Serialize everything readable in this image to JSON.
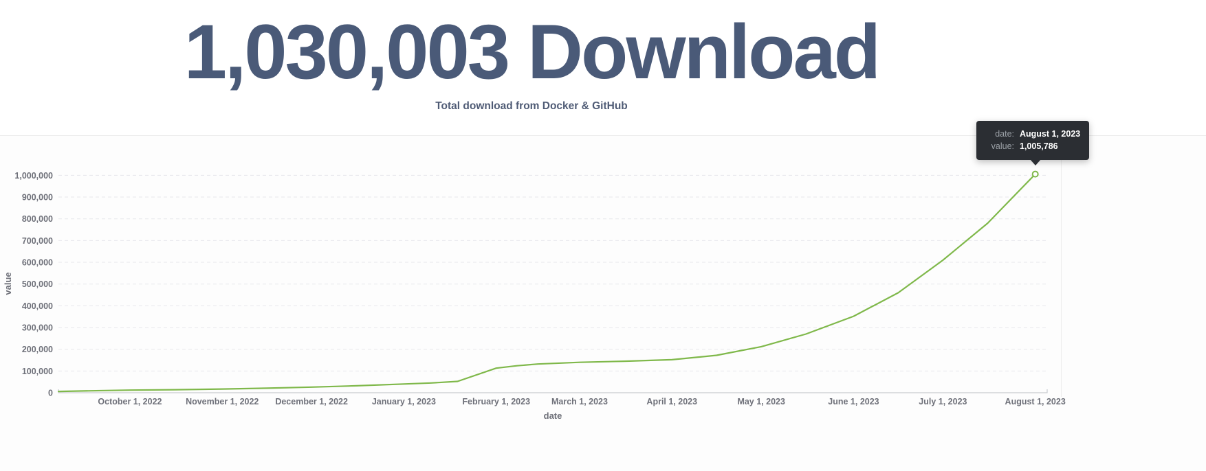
{
  "header": {
    "title": "1,030,003 Download",
    "subtitle": "Total download from Docker & GitHub"
  },
  "tooltip": {
    "rows": [
      {
        "label": "date:",
        "value": "August 1, 2023"
      },
      {
        "label": "value:",
        "value": "1,005,786"
      }
    ]
  },
  "colors": {
    "title": "#4a5a78",
    "subtitle": "#4f5b75",
    "line": "#7fb84a",
    "tooltip_bg": "#2b2e33",
    "tooltip_label": "#9ba0a6",
    "axis_text": "#6e7079",
    "grid_line": "#e7e8ec",
    "axis_line": "#c8cbd0"
  },
  "chart_data": {
    "type": "line",
    "title": "",
    "xlabel": "date",
    "ylabel": "value",
    "grid": "horizontal dashed gridlines",
    "legend": "none",
    "x_range": [
      "2022-09-07",
      "2023-08-05"
    ],
    "ylim": [
      0,
      1000000
    ],
    "y_ticks": [
      {
        "value": 0,
        "label": "0"
      },
      {
        "value": 100000,
        "label": "100,000"
      },
      {
        "value": 200000,
        "label": "200,000"
      },
      {
        "value": 300000,
        "label": "300,000"
      },
      {
        "value": 400000,
        "label": "400,000"
      },
      {
        "value": 500000,
        "label": "500,000"
      },
      {
        "value": 600000,
        "label": "600,000"
      },
      {
        "value": 700000,
        "label": "700,000"
      },
      {
        "value": 800000,
        "label": "800,000"
      },
      {
        "value": 900000,
        "label": "900,000"
      },
      {
        "value": 1000000,
        "label": "1,000,000"
      }
    ],
    "x_ticks": [
      {
        "date": "2022-10-01",
        "label": "October 1, 2022"
      },
      {
        "date": "2022-11-01",
        "label": "November 1, 2022"
      },
      {
        "date": "2022-12-01",
        "label": "December 1, 2022"
      },
      {
        "date": "2023-01-01",
        "label": "January 1, 2023"
      },
      {
        "date": "2023-02-01",
        "label": "February 1, 2023"
      },
      {
        "date": "2023-03-01",
        "label": "March 1, 2023"
      },
      {
        "date": "2023-04-01",
        "label": "April 1, 2023"
      },
      {
        "date": "2023-05-01",
        "label": "May 1, 2023"
      },
      {
        "date": "2023-06-01",
        "label": "June 1, 2023"
      },
      {
        "date": "2023-07-01",
        "label": "July 1, 2023"
      },
      {
        "date": "2023-08-01",
        "label": "August 1, 2023"
      }
    ],
    "series": [
      {
        "name": "value",
        "points": [
          [
            "2022-09-07",
            6000
          ],
          [
            "2022-09-18",
            9000
          ],
          [
            "2022-10-01",
            12000
          ],
          [
            "2022-10-16",
            14000
          ],
          [
            "2022-11-01",
            17000
          ],
          [
            "2022-11-16",
            21000
          ],
          [
            "2022-12-01",
            26000
          ],
          [
            "2022-12-16",
            32000
          ],
          [
            "2023-01-01",
            40000
          ],
          [
            "2023-01-10",
            45000
          ],
          [
            "2023-01-19",
            52000
          ],
          [
            "2023-02-01",
            113000
          ],
          [
            "2023-02-08",
            124000
          ],
          [
            "2023-02-15",
            132000
          ],
          [
            "2023-03-01",
            140000
          ],
          [
            "2023-03-16",
            145000
          ],
          [
            "2023-04-01",
            152000
          ],
          [
            "2023-04-16",
            172000
          ],
          [
            "2023-05-01",
            212000
          ],
          [
            "2023-05-16",
            270000
          ],
          [
            "2023-06-01",
            352000
          ],
          [
            "2023-06-16",
            460000
          ],
          [
            "2023-07-01",
            610000
          ],
          [
            "2023-07-16",
            780000
          ],
          [
            "2023-08-01",
            1005786
          ]
        ]
      }
    ],
    "highlighted_point": {
      "date": "2023-08-01",
      "value": 1005786
    }
  }
}
